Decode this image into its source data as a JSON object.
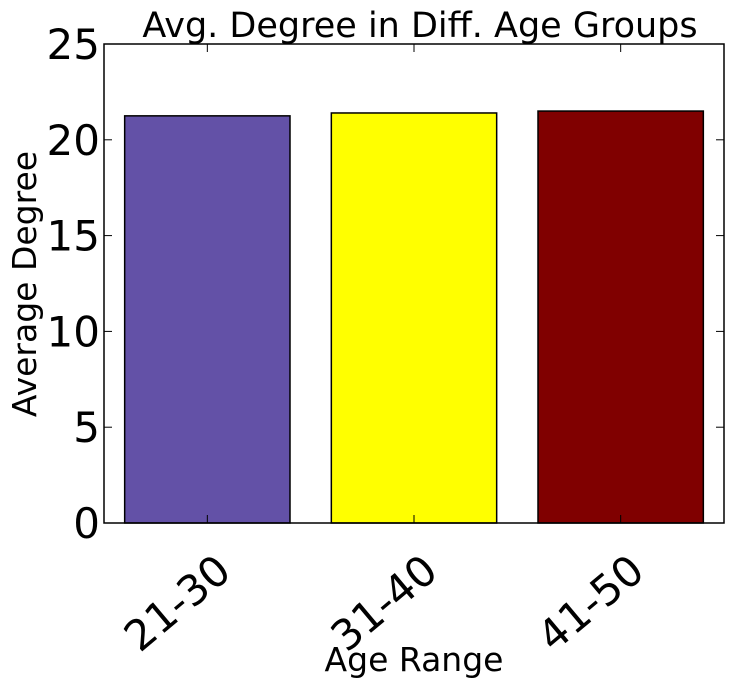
{
  "chart_data": {
    "type": "bar",
    "title": "Avg. Degree in Diff. Age Groups",
    "xlabel": "Age Range",
    "ylabel": "Average Degree",
    "categories": [
      "21-30",
      "31-40",
      "41-50"
    ],
    "values": [
      21.25,
      21.4,
      21.5
    ],
    "colors": [
      "#6351a7",
      "#ffff00",
      "#800000"
    ],
    "ylim": [
      0,
      25
    ],
    "yticks": [
      0,
      5,
      10,
      15,
      20,
      25
    ],
    "ytick_labels": [
      "0",
      "5",
      "10",
      "15",
      "20",
      "25"
    ],
    "grid": false,
    "legend": "none"
  }
}
